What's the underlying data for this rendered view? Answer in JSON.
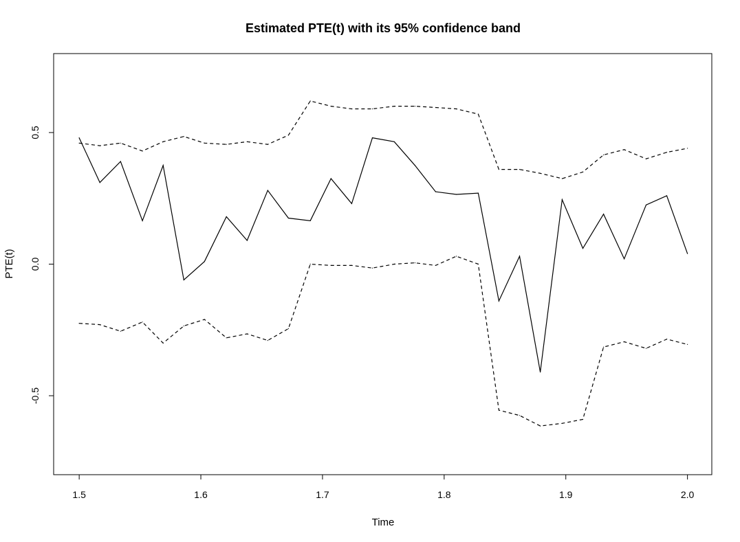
{
  "chart_data": {
    "type": "line",
    "title": "Estimated PTE(t) with its 95% confidence band",
    "xlabel": "Time",
    "ylabel": "PTE(t)",
    "xlim": [
      1.479,
      2.02
    ],
    "ylim": [
      -0.8,
      0.8
    ],
    "grid": false,
    "x_ticks": [
      1.5,
      1.6,
      1.7,
      1.8,
      1.9,
      2.0
    ],
    "x_tick_labels": [
      "1.5",
      "1.6",
      "1.7",
      "1.8",
      "1.9",
      "2.0"
    ],
    "y_ticks": [
      -0.5,
      0.0,
      0.5
    ],
    "y_tick_labels": [
      "-0.5",
      "0.0",
      "0.5"
    ],
    "x": [
      1.5,
      1.517,
      1.534,
      1.552,
      1.569,
      1.586,
      1.603,
      1.621,
      1.638,
      1.655,
      1.672,
      1.69,
      1.707,
      1.724,
      1.741,
      1.759,
      1.776,
      1.793,
      1.81,
      1.828,
      1.845,
      1.862,
      1.879,
      1.897,
      1.914,
      1.931,
      1.948,
      1.966,
      1.983,
      2.0
    ],
    "series": [
      {
        "style": "solid",
        "values": [
          0.48,
          0.31,
          0.39,
          0.165,
          0.375,
          -0.06,
          0.01,
          0.18,
          0.09,
          0.28,
          0.175,
          0.165,
          0.325,
          0.23,
          0.48,
          0.465,
          0.375,
          0.275,
          0.265,
          0.27,
          -0.14,
          0.03,
          -0.41,
          0.245,
          0.06,
          0.19,
          0.02,
          0.225,
          0.26,
          0.04
        ]
      },
      {
        "style": "dashed",
        "values": [
          0.46,
          0.45,
          0.46,
          0.43,
          0.465,
          0.485,
          0.46,
          0.455,
          0.465,
          0.455,
          0.49,
          0.62,
          0.6,
          0.59,
          0.59,
          0.6,
          0.6,
          0.595,
          0.59,
          0.57,
          0.36,
          0.36,
          0.345,
          0.325,
          0.35,
          0.415,
          0.435,
          0.4,
          0.425,
          0.44
        ]
      },
      {
        "style": "dashed",
        "values": [
          -0.225,
          -0.23,
          -0.255,
          -0.22,
          -0.3,
          -0.235,
          -0.21,
          -0.28,
          -0.265,
          -0.29,
          -0.245,
          0.0,
          -0.005,
          -0.005,
          -0.015,
          0.0,
          0.005,
          -0.005,
          0.03,
          0.0,
          -0.555,
          -0.575,
          -0.615,
          -0.605,
          -0.59,
          -0.315,
          -0.295,
          -0.32,
          -0.285,
          -0.305
        ]
      }
    ]
  }
}
